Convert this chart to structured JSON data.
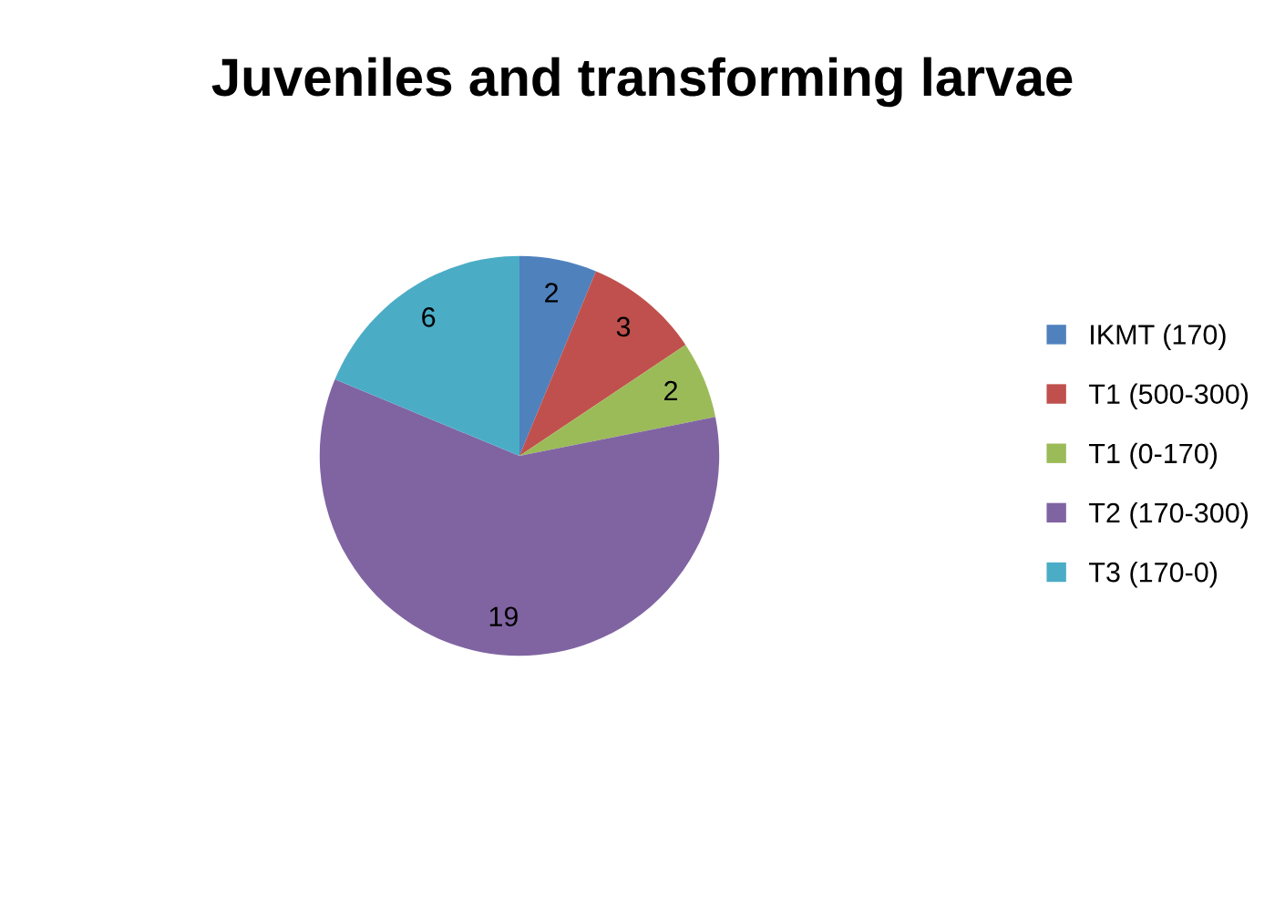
{
  "chart_data": {
    "type": "pie",
    "title": "Juveniles and transforming larvae",
    "categories": [
      "IKMT (170)",
      "T1 (500-300)",
      "T1 (0-170)",
      "T2 (170-300)",
      "T3 (170-0)"
    ],
    "values": [
      2,
      3,
      2,
      19,
      6
    ],
    "colors": [
      "#4f81bd",
      "#c0504d",
      "#9bbb59",
      "#8064a2",
      "#4bacc6"
    ],
    "data_labels": true,
    "legend": "right"
  }
}
